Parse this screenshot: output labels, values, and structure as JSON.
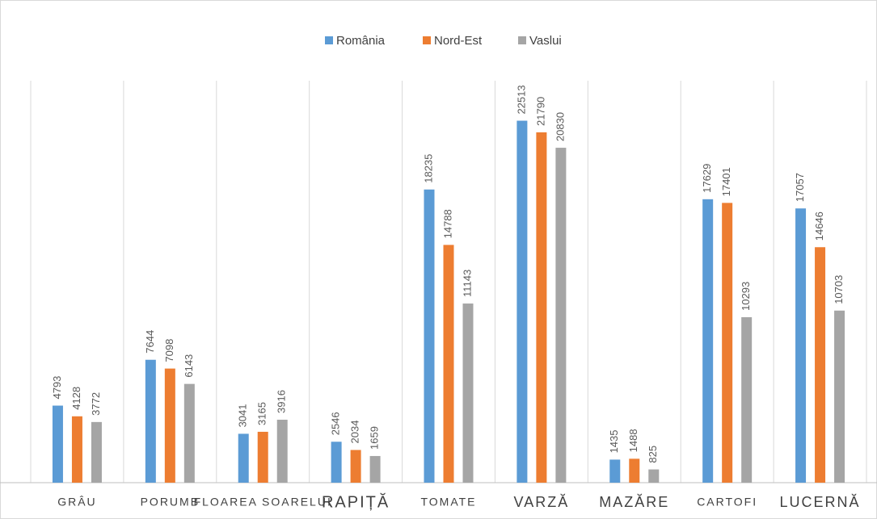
{
  "chart_data": {
    "type": "bar",
    "categories": [
      "GRÂU",
      "PORUMB",
      "FLOAREA SOARELUI",
      "RAPIȚĂ",
      "TOMATE",
      "VARZĂ",
      "MAZĂRE",
      "CARTOFI",
      "LUCERNĂ"
    ],
    "series": [
      {
        "name": "România",
        "color": "#5b9bd5",
        "values": [
          4793,
          7644,
          3041,
          2546,
          18235,
          22513,
          1435,
          17629,
          17057
        ]
      },
      {
        "name": "Nord-Est",
        "color": "#ed7d31",
        "values": [
          4128,
          7098,
          3165,
          2034,
          14788,
          21790,
          1488,
          17401,
          14646
        ]
      },
      {
        "name": "Vaslui",
        "color": "#a5a5a5",
        "values": [
          3772,
          6143,
          3916,
          1659,
          11143,
          20830,
          825,
          10293,
          10703
        ]
      }
    ],
    "ylim": [
      0,
      25000
    ],
    "legend": "top"
  }
}
